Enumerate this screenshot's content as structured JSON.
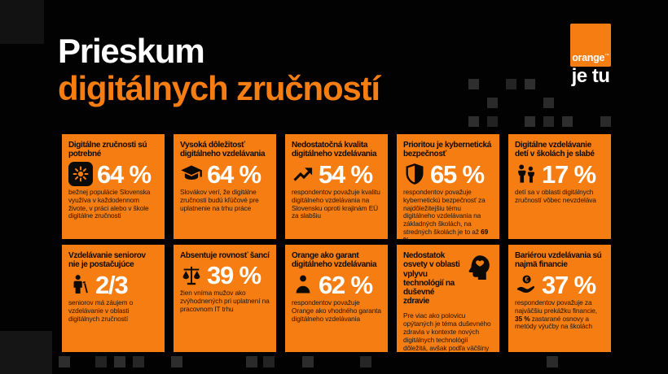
{
  "header": {
    "title_line1": "Prieskum",
    "title_line2": "digitálnych zručností",
    "logo": {
      "brand": "orange",
      "tm": "™",
      "tagline": "je tu"
    }
  },
  "colors": {
    "accent_orange": "#F57D12",
    "background": "#020202",
    "stat_text": "#FFFFFF",
    "card_text": "#211505",
    "decor_square": "#2B2B2B"
  },
  "cards": [
    {
      "icon": "digital-skills-icon",
      "title": "Digitálne zručnosti sú potrebné",
      "value": "64 %",
      "body_pre": "bežnej populácie Slovenska využíva v každodennom živote, v práci alebo v škole digitálne zručnosti",
      "body_bold": "",
      "body_post": ""
    },
    {
      "icon": "graduation-cap-icon",
      "title": "Vysoká dôležitosť digitálneho vzdelávania",
      "value": "64 %",
      "body_pre": "Slovákov verí, že digitálne zručnosti budú kľúčové pre uplatnenie na trhu práce",
      "body_bold": "",
      "body_post": ""
    },
    {
      "icon": "trending-up-icon",
      "title": "Nedostatočná kvalita digitálneho vzdelávania",
      "value": "54 %",
      "body_pre": "respondentov považuje kvalitu digitálneho vzdelávania na Slovensku oproti krajinám EÚ za slabšiu",
      "body_bold": "",
      "body_post": ""
    },
    {
      "icon": "shield-icon",
      "title": "Prioritou je kybernetická bezpečnosť",
      "value": "65 %",
      "body_pre": "respondentov považuje kybernetickú bezpečnosť za najdôležitejšiu tému digitálneho vzdelávania na základných školách, na stredných školách je to až ",
      "body_bold": "69 %",
      "body_post": ""
    },
    {
      "icon": "children-icon",
      "title": "Digitálne vzdelávanie detí v školách je slabé",
      "value": "17 %",
      "body_pre": "detí sa v oblasti digitálnych zručností vôbec nevzdeláva",
      "body_bold": "",
      "body_post": ""
    },
    {
      "icon": "senior-cane-icon",
      "title": "Vzdelávanie seniorov nie je postačujúce",
      "value": "2/3",
      "body_pre": "seniorov má záujem o vzdelávanie v oblasti digitálnych zručností",
      "body_bold": "",
      "body_post": ""
    },
    {
      "icon": "scales-icon",
      "title": "Absentuje rovnosť šancí",
      "value": "39 %",
      "body_pre": "žien vníma mužov ako zvýhodnených pri uplatnení na pracovnom IT trhu",
      "body_bold": "",
      "body_post": ""
    },
    {
      "icon": "person-icon",
      "title": "Orange ako garant digitálneho vzdelávania",
      "value": "62 %",
      "body_pre": "respondentov považuje Orange ako vhodného garanta digitálneho vzdelávania",
      "body_bold": "",
      "body_post": ""
    },
    {
      "icon": "head-mind-icon",
      "title": "Nedostatok osvety v oblasti vplyvu technológií na duševné zdravie",
      "value": "",
      "body_pre": "Pre viac ako polovicu opýtaných je téma duševného zdravia v kontexte nových digitálnych technológií dôležitá, avšak podľa väčšiny nie je dostatočne pokrytá",
      "body_bold": "",
      "body_post": ""
    },
    {
      "icon": "hand-euro-icon",
      "title": "Bariérou vzdelávania sú najmä financie",
      "value": "37 %",
      "body_pre": "respondentov považuje za najväčšiu prekážku financie, ",
      "body_bold": "35 %",
      "body_post": " zastarané osnovy a metódy výučby na školách"
    }
  ]
}
